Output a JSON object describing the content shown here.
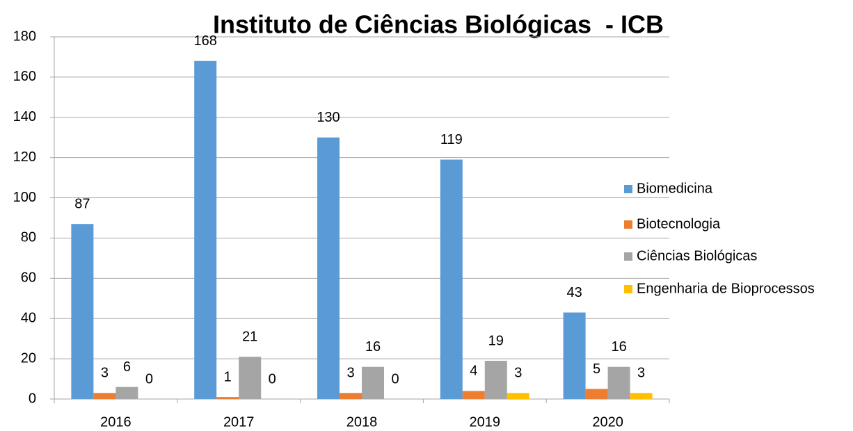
{
  "chart_data": {
    "type": "bar",
    "title": "Instituto de Ciências Biológicas  - ICB",
    "categories": [
      "2016",
      "2017",
      "2018",
      "2019",
      "2020"
    ],
    "series": [
      {
        "name": "Biomedicina",
        "color": "#5b9bd5",
        "values": [
          87,
          168,
          130,
          119,
          43
        ]
      },
      {
        "name": "Biotecnologia",
        "color": "#ed7d31",
        "values": [
          3,
          1,
          3,
          4,
          5
        ]
      },
      {
        "name": "Ciências Biológicas",
        "color": "#a5a5a5",
        "values": [
          6,
          21,
          16,
          19,
          16
        ]
      },
      {
        "name": "Engenharia de Bioprocessos",
        "color": "#ffc000",
        "values": [
          0,
          0,
          0,
          3,
          3
        ]
      }
    ],
    "ylim": [
      0,
      180
    ],
    "yticks": [
      0,
      20,
      40,
      60,
      80,
      100,
      120,
      140,
      160,
      180
    ],
    "grid": true,
    "legend": "right"
  }
}
